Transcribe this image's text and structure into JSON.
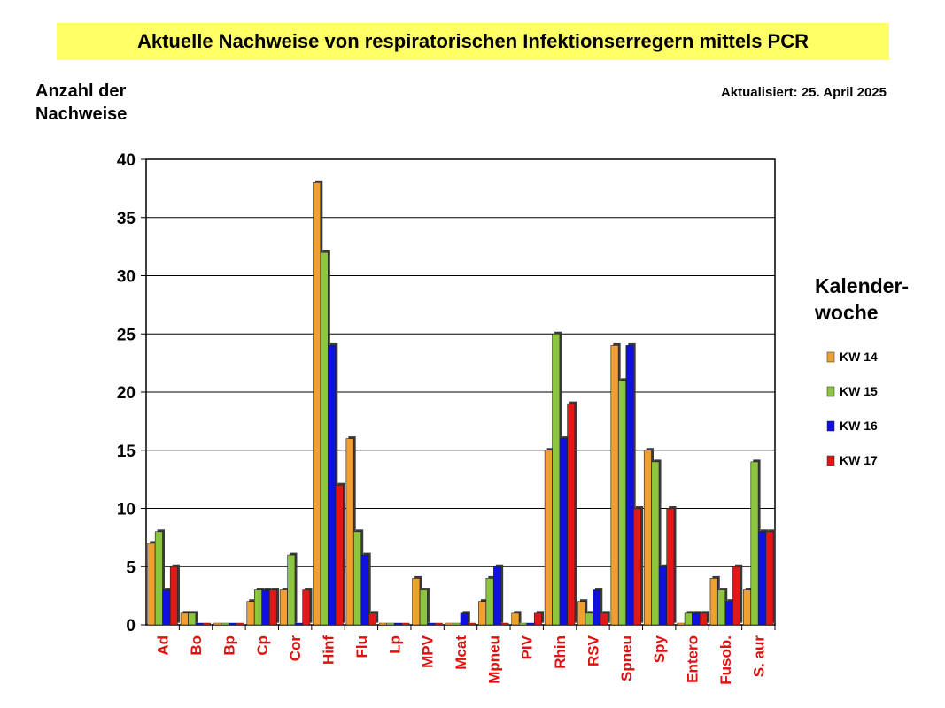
{
  "title": "Aktuelle Nachweise von respiratorischen Infektionserregern mittels PCR",
  "updated": "Aktualisiert:  25. April 2025",
  "legend_title": "Kalender-\nwoche",
  "colors": {
    "KW 14": "#f0a030",
    "KW 15": "#8cc63e",
    "KW 16": "#1010e0",
    "KW 17": "#e01818",
    "tick_label": "#e01010"
  },
  "chart_data": {
    "type": "bar",
    "title": "Aktuelle Nachweise von respiratorischen Infektionserregern mittels PCR",
    "ylabel": "Anzahl der\nNachweise",
    "xlabel": "",
    "ylim": [
      0,
      40
    ],
    "yticks": [
      0,
      5,
      10,
      15,
      20,
      25,
      30,
      35,
      40
    ],
    "grid": true,
    "legend_position": "right",
    "categories": [
      "Ad",
      "Bo",
      "Bp",
      "Cp",
      "Cor",
      "Hinf",
      "Flu",
      "Lp",
      "MPV",
      "Mcat",
      "Mpneu",
      "PIV",
      "Rhin",
      "RSV",
      "Spneu",
      "Spy",
      "Entero",
      "Fusob.",
      "S. aur"
    ],
    "series": [
      {
        "name": "KW 14",
        "values": [
          7,
          1,
          0,
          2,
          3,
          38,
          16,
          0,
          4,
          0,
          2,
          1,
          15,
          2,
          24,
          15,
          0,
          4,
          3
        ]
      },
      {
        "name": "KW 15",
        "values": [
          8,
          1,
          0,
          3,
          6,
          32,
          8,
          0,
          3,
          0,
          4,
          0,
          25,
          1,
          21,
          14,
          1,
          3,
          14
        ]
      },
      {
        "name": "KW 16",
        "values": [
          3,
          0,
          0,
          3,
          0,
          24,
          6,
          0,
          0,
          1,
          5,
          0,
          16,
          3,
          24,
          5,
          1,
          2,
          8
        ]
      },
      {
        "name": "KW 17",
        "values": [
          5,
          0,
          0,
          3,
          3,
          12,
          1,
          0,
          0,
          0,
          0,
          1,
          19,
          1,
          10,
          10,
          1,
          5,
          8
        ]
      }
    ]
  }
}
